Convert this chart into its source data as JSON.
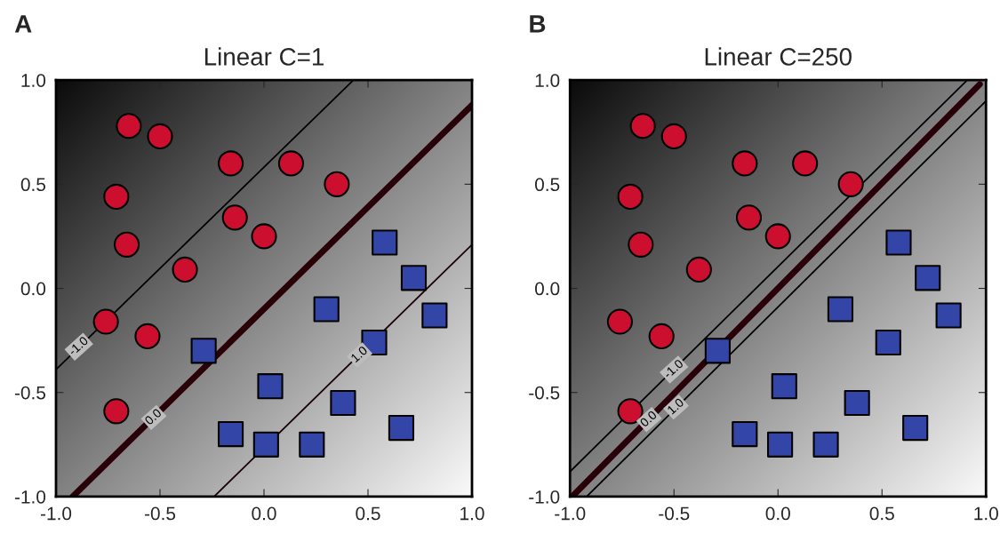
{
  "chart_data": [
    {
      "type": "scatter",
      "title": "Linear C=1",
      "xlim": [
        -1,
        1
      ],
      "ylim": [
        -1,
        1
      ],
      "xticks": [
        {
          "value": -1,
          "label": "-1.0"
        },
        {
          "value": -0.5,
          "label": "-0.5"
        },
        {
          "value": 0,
          "label": "0.0"
        },
        {
          "value": 0.5,
          "label": "0.5"
        },
        {
          "value": 1,
          "label": "1.0"
        }
      ],
      "yticks": [
        {
          "value": -1,
          "label": "-1.0"
        },
        {
          "value": -0.5,
          "label": "-0.5"
        },
        {
          "value": 0,
          "label": "0.0"
        },
        {
          "value": 0.5,
          "label": "0.5"
        },
        {
          "value": 1,
          "label": "1.0"
        }
      ],
      "grid": false,
      "legend": false,
      "annotations": [
        "A",
        {
          "text": "-1.0",
          "x": -0.89,
          "y": -0.28
        },
        {
          "text": "0.0",
          "x": -0.53,
          "y": -0.62
        },
        {
          "text": "1.0",
          "x": 0.46,
          "y": -0.32
        }
      ],
      "series": [
        {
          "marker": "circle",
          "color": "#cc0f2e",
          "x": [
            -0.65,
            -0.5,
            -0.71,
            -0.66,
            -0.16,
            0.13,
            0.35,
            -0.14,
            0.0,
            -0.38,
            -0.76,
            -0.56,
            -0.71
          ],
          "values": [
            0.78,
            0.73,
            0.44,
            0.21,
            0.6,
            0.6,
            0.5,
            0.34,
            0.25,
            0.09,
            -0.16,
            -0.23,
            -0.59
          ]
        },
        {
          "marker": "square",
          "color": "#3346a8",
          "x": [
            0.58,
            0.72,
            0.82,
            0.3,
            0.53,
            -0.29,
            0.03,
            0.38,
            0.66,
            -0.16,
            0.01,
            0.23
          ],
          "values": [
            0.22,
            0.05,
            -0.13,
            -0.1,
            -0.26,
            -0.3,
            -0.47,
            -0.55,
            -0.67,
            -0.7,
            -0.75,
            -0.75
          ]
        },
        {
          "type": "line",
          "color": "#000000",
          "x": [
            -1.0,
            0.43
          ],
          "values": [
            -0.39,
            1.0
          ]
        },
        {
          "type": "line",
          "color": "#2a0008",
          "x": [
            -0.92,
            1.0
          ],
          "values": [
            -1.0,
            0.88
          ]
        },
        {
          "type": "line",
          "color": "#1a0004",
          "x": [
            -0.24,
            1.0
          ],
          "values": [
            -1.0,
            0.21
          ]
        }
      ]
    },
    {
      "type": "scatter",
      "title": "Linear C=250",
      "xlim": [
        -1,
        1
      ],
      "ylim": [
        -1,
        1
      ],
      "xticks": [
        {
          "value": -1,
          "label": "-1.0"
        },
        {
          "value": -0.5,
          "label": "-0.5"
        },
        {
          "value": 0,
          "label": "0.0"
        },
        {
          "value": 0.5,
          "label": "0.5"
        },
        {
          "value": 1,
          "label": "1.0"
        }
      ],
      "yticks": [
        {
          "value": -1,
          "label": "-1.0"
        },
        {
          "value": -0.5,
          "label": "-0.5"
        },
        {
          "value": 0,
          "label": "0.0"
        },
        {
          "value": 0.5,
          "label": "0.5"
        },
        {
          "value": 1,
          "label": "1.0"
        }
      ],
      "grid": false,
      "legend": false,
      "annotations": [
        "B",
        {
          "text": "-1.0",
          "x": -0.5,
          "y": -0.39
        },
        {
          "text": "0.0",
          "x": -0.62,
          "y": -0.63
        },
        {
          "text": "1.0",
          "x": -0.49,
          "y": -0.57
        }
      ],
      "series": [
        {
          "marker": "circle",
          "color": "#cc0f2e",
          "x": [
            -0.65,
            -0.5,
            -0.71,
            -0.66,
            -0.16,
            0.13,
            0.35,
            -0.14,
            0.0,
            -0.38,
            -0.76,
            -0.56,
            -0.71
          ],
          "values": [
            0.78,
            0.73,
            0.44,
            0.21,
            0.6,
            0.6,
            0.5,
            0.34,
            0.25,
            0.09,
            -0.16,
            -0.23,
            -0.59
          ]
        },
        {
          "marker": "square",
          "color": "#3346a8",
          "x": [
            0.58,
            0.72,
            0.82,
            0.3,
            0.53,
            -0.29,
            0.03,
            0.38,
            0.66,
            -0.16,
            0.01,
            0.23
          ],
          "values": [
            0.22,
            0.05,
            -0.13,
            -0.1,
            -0.26,
            -0.3,
            -0.47,
            -0.55,
            -0.67,
            -0.7,
            -0.75,
            -0.75
          ]
        },
        {
          "type": "line",
          "color": "#000000",
          "x": [
            -1.0,
            0.91
          ],
          "values": [
            -0.88,
            1.0
          ]
        },
        {
          "type": "line",
          "color": "#2a0008",
          "x": [
            -0.99,
            0.97
          ],
          "values": [
            -1.0,
            0.98
          ]
        },
        {
          "type": "line",
          "color": "#000000",
          "x": [
            -0.92,
            1.0
          ],
          "values": [
            -1.0,
            0.9
          ]
        }
      ]
    }
  ]
}
